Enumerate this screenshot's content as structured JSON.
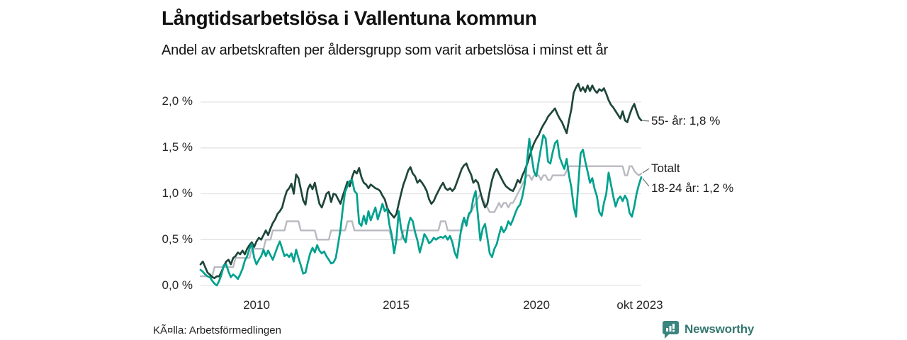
{
  "header": {
    "title": "Långtidsarbetslösa i Vallentuna kommun",
    "subtitle": "Andel av arbetskraften per åldersgrupp som varit arbetslösa i minst ett år"
  },
  "chart_data": {
    "type": "line",
    "unit": "%",
    "frequency": "monthly",
    "x_start": "2008-01",
    "x_end": "2023-10",
    "ylim": [
      0,
      2.3
    ],
    "grid": "horizontal",
    "legend_position": "right-edge-annotations",
    "yticks": [
      {
        "label": "0,0 %",
        "value": 0.0
      },
      {
        "label": "0,5 %",
        "value": 0.5
      },
      {
        "label": "1,0 %",
        "value": 1.0
      },
      {
        "label": "1,5 %",
        "value": 1.5
      },
      {
        "label": "2,0 %",
        "value": 2.0
      }
    ],
    "xticks": [
      {
        "label": "2010",
        "month_index": 24
      },
      {
        "label": "2015",
        "month_index": 84
      },
      {
        "label": "2020",
        "month_index": 144
      },
      {
        "label": "okt 2023",
        "month_index": 189
      }
    ],
    "series": [
      {
        "name": "Totalt",
        "color": "#b9b9c1",
        "width": 2.4,
        "values": [
          0.1,
          0.1,
          0.1,
          0.1,
          0.1,
          0.1,
          0.2,
          0.2,
          0.2,
          0.2,
          0.2,
          0.2,
          0.2,
          0.2,
          0.2,
          0.3,
          0.3,
          0.3,
          0.3,
          0.3,
          0.3,
          0.3,
          0.4,
          0.4,
          0.4,
          0.4,
          0.4,
          0.4,
          0.5,
          0.5,
          0.5,
          0.6,
          0.6,
          0.6,
          0.6,
          0.6,
          0.6,
          0.7,
          0.7,
          0.7,
          0.7,
          0.7,
          0.7,
          0.6,
          0.6,
          0.6,
          0.6,
          0.6,
          0.6,
          0.6,
          0.5,
          0.5,
          0.5,
          0.5,
          0.5,
          0.5,
          0.6,
          0.6,
          0.6,
          0.6,
          0.6,
          0.6,
          0.6,
          0.7,
          0.7,
          0.7,
          0.6,
          0.6,
          0.6,
          0.6,
          0.6,
          0.6,
          0.6,
          0.6,
          0.6,
          0.6,
          0.6,
          0.6,
          0.6,
          0.6,
          0.6,
          0.6,
          0.5,
          0.5,
          0.5,
          0.5,
          0.5,
          0.6,
          0.6,
          0.6,
          0.6,
          0.6,
          0.6,
          0.6,
          0.6,
          0.6,
          0.6,
          0.6,
          0.6,
          0.6,
          0.6,
          0.6,
          0.6,
          0.7,
          0.7,
          0.7,
          0.6,
          0.6,
          0.6,
          0.6,
          0.6,
          0.6,
          0.6,
          0.7,
          0.7,
          0.75,
          0.8,
          0.85,
          0.9,
          0.95,
          1.0,
          0.95,
          0.9,
          0.85,
          0.8,
          0.8,
          0.8,
          0.85,
          0.9,
          0.85,
          0.9,
          0.9,
          0.85,
          0.9,
          0.9,
          0.95,
          1.0,
          1.05,
          1.1,
          1.15,
          1.2,
          1.2,
          1.15,
          1.2,
          1.2,
          1.2,
          1.15,
          1.2,
          1.2,
          1.15,
          1.15,
          1.2,
          1.2,
          1.2,
          1.2,
          1.2,
          1.2,
          1.25,
          1.3,
          1.3,
          1.3,
          1.3,
          1.3,
          1.3,
          1.3,
          1.3,
          1.3,
          1.3,
          1.3,
          1.3,
          1.3,
          1.3,
          1.3,
          1.3,
          1.3,
          1.3,
          1.3,
          1.3,
          1.3,
          1.3,
          1.3,
          1.3,
          1.2,
          1.2,
          1.3,
          1.3,
          1.25,
          1.22,
          1.2,
          1.22
        ]
      },
      {
        "name": "55- år",
        "color": "#1e463a",
        "width": 2.7,
        "values": [
          0.23,
          0.26,
          0.2,
          0.14,
          0.12,
          0.09,
          0.08,
          0.1,
          0.1,
          0.15,
          0.21,
          0.26,
          0.28,
          0.23,
          0.3,
          0.32,
          0.36,
          0.34,
          0.38,
          0.34,
          0.4,
          0.44,
          0.47,
          0.42,
          0.48,
          0.52,
          0.5,
          0.55,
          0.6,
          0.55,
          0.62,
          0.68,
          0.72,
          0.78,
          0.81,
          0.85,
          0.95,
          1.03,
          1.06,
          1.11,
          1.0,
          1.21,
          1.17,
          1.05,
          0.93,
          0.88,
          1.05,
          1.1,
          1.05,
          1.12,
          1.0,
          0.89,
          0.85,
          0.92,
          1.0,
          1.02,
          0.91,
          1.0,
          0.99,
          0.94,
          0.89,
          0.98,
          1.05,
          1.13,
          1.08,
          1.18,
          1.25,
          1.22,
          1.28,
          1.18,
          1.12,
          1.1,
          1.06,
          1.1,
          1.08,
          1.06,
          1.05,
          1.03,
          0.98,
          0.94,
          0.85,
          0.8,
          0.77,
          0.74,
          0.78,
          0.89,
          1.0,
          1.1,
          1.17,
          1.25,
          1.29,
          1.22,
          1.19,
          1.12,
          1.15,
          1.12,
          1.08,
          1.03,
          0.94,
          0.89,
          0.92,
          0.98,
          1.03,
          1.08,
          1.12,
          1.06,
          1.04,
          1.06,
          1.03,
          1.06,
          1.13,
          1.2,
          1.27,
          1.31,
          1.33,
          1.26,
          1.21,
          1.12,
          1.15,
          1.12,
          1.02,
          0.92,
          0.85,
          0.89,
          1.03,
          1.15,
          1.23,
          1.27,
          1.22,
          1.17,
          1.12,
          1.08,
          1.06,
          1.04,
          1.03,
          1.08,
          1.15,
          1.12,
          1.2,
          1.25,
          1.32,
          1.4,
          1.48,
          1.55,
          1.6,
          1.64,
          1.7,
          1.75,
          1.79,
          1.84,
          1.87,
          1.9,
          1.93,
          1.87,
          1.82,
          1.78,
          1.72,
          1.66,
          1.8,
          1.92,
          2.1,
          2.16,
          2.2,
          2.12,
          2.16,
          2.11,
          2.18,
          2.12,
          2.18,
          2.13,
          2.1,
          2.14,
          2.12,
          2.15,
          2.09,
          2.02,
          1.97,
          1.94,
          1.9,
          1.86,
          1.82,
          1.9,
          1.8,
          1.78,
          1.86,
          1.93,
          1.98,
          1.9,
          1.83,
          1.8
        ]
      },
      {
        "name": "18-24 år",
        "color": "#00a18e",
        "width": 2.7,
        "values": [
          0.17,
          0.15,
          0.12,
          0.1,
          0.09,
          0.05,
          0.02,
          0.0,
          0.05,
          0.12,
          0.22,
          0.23,
          0.15,
          0.09,
          0.12,
          0.1,
          0.07,
          0.12,
          0.18,
          0.27,
          0.32,
          0.4,
          0.45,
          0.3,
          0.23,
          0.28,
          0.32,
          0.39,
          0.32,
          0.38,
          0.33,
          0.28,
          0.35,
          0.42,
          0.48,
          0.4,
          0.32,
          0.34,
          0.31,
          0.35,
          0.26,
          0.39,
          0.3,
          0.22,
          0.13,
          0.14,
          0.25,
          0.35,
          0.41,
          0.36,
          0.44,
          0.38,
          0.35,
          0.37,
          0.32,
          0.28,
          0.24,
          0.25,
          0.3,
          0.45,
          0.61,
          0.84,
          1.02,
          1.08,
          1.14,
          1.15,
          1.03,
          1.0,
          0.68,
          0.65,
          0.76,
          0.67,
          0.81,
          0.71,
          0.78,
          0.85,
          0.72,
          0.8,
          0.89,
          0.81,
          0.84,
          0.66,
          0.55,
          0.35,
          0.5,
          0.81,
          0.62,
          0.52,
          0.47,
          0.65,
          0.74,
          0.7,
          0.58,
          0.49,
          0.36,
          0.45,
          0.56,
          0.52,
          0.46,
          0.48,
          0.52,
          0.5,
          0.52,
          0.53,
          0.52,
          0.54,
          0.5,
          0.54,
          0.47,
          0.36,
          0.3,
          0.48,
          0.65,
          0.74,
          0.65,
          0.78,
          0.81,
          0.95,
          1.03,
          0.75,
          0.49,
          0.62,
          0.67,
          0.52,
          0.35,
          0.31,
          0.4,
          0.45,
          0.55,
          0.64,
          0.58,
          0.62,
          0.7,
          0.66,
          0.72,
          0.79,
          0.85,
          0.88,
          0.97,
          1.1,
          1.35,
          1.6,
          1.4,
          1.24,
          1.19,
          1.35,
          1.5,
          1.64,
          1.6,
          1.35,
          1.33,
          1.45,
          1.55,
          1.58,
          1.4,
          1.33,
          1.27,
          1.38,
          1.2,
          1.07,
          0.86,
          0.75,
          1.1,
          1.44,
          1.48,
          1.35,
          1.24,
          1.12,
          1.17,
          1.05,
          0.97,
          0.8,
          0.76,
          0.9,
          1.0,
          1.23,
          1.1,
          0.97,
          0.86,
          0.94,
          0.97,
          0.92,
          0.98,
          0.93,
          0.79,
          0.75,
          0.86,
          1.0,
          1.1,
          1.18
        ]
      }
    ],
    "annotations": [
      {
        "text": "55- år: 1,8 %",
        "series": "55- år",
        "value": "1,8 %"
      },
      {
        "text": "Totalt",
        "series": "Totalt"
      },
      {
        "text": "18-24 år: 1,2 %",
        "series": "18-24 år",
        "value": "1,2 %"
      }
    ]
  },
  "footer": {
    "source": "KÃ¤lla: Arbetsförmedlingen",
    "brand": "Newsworthy"
  }
}
